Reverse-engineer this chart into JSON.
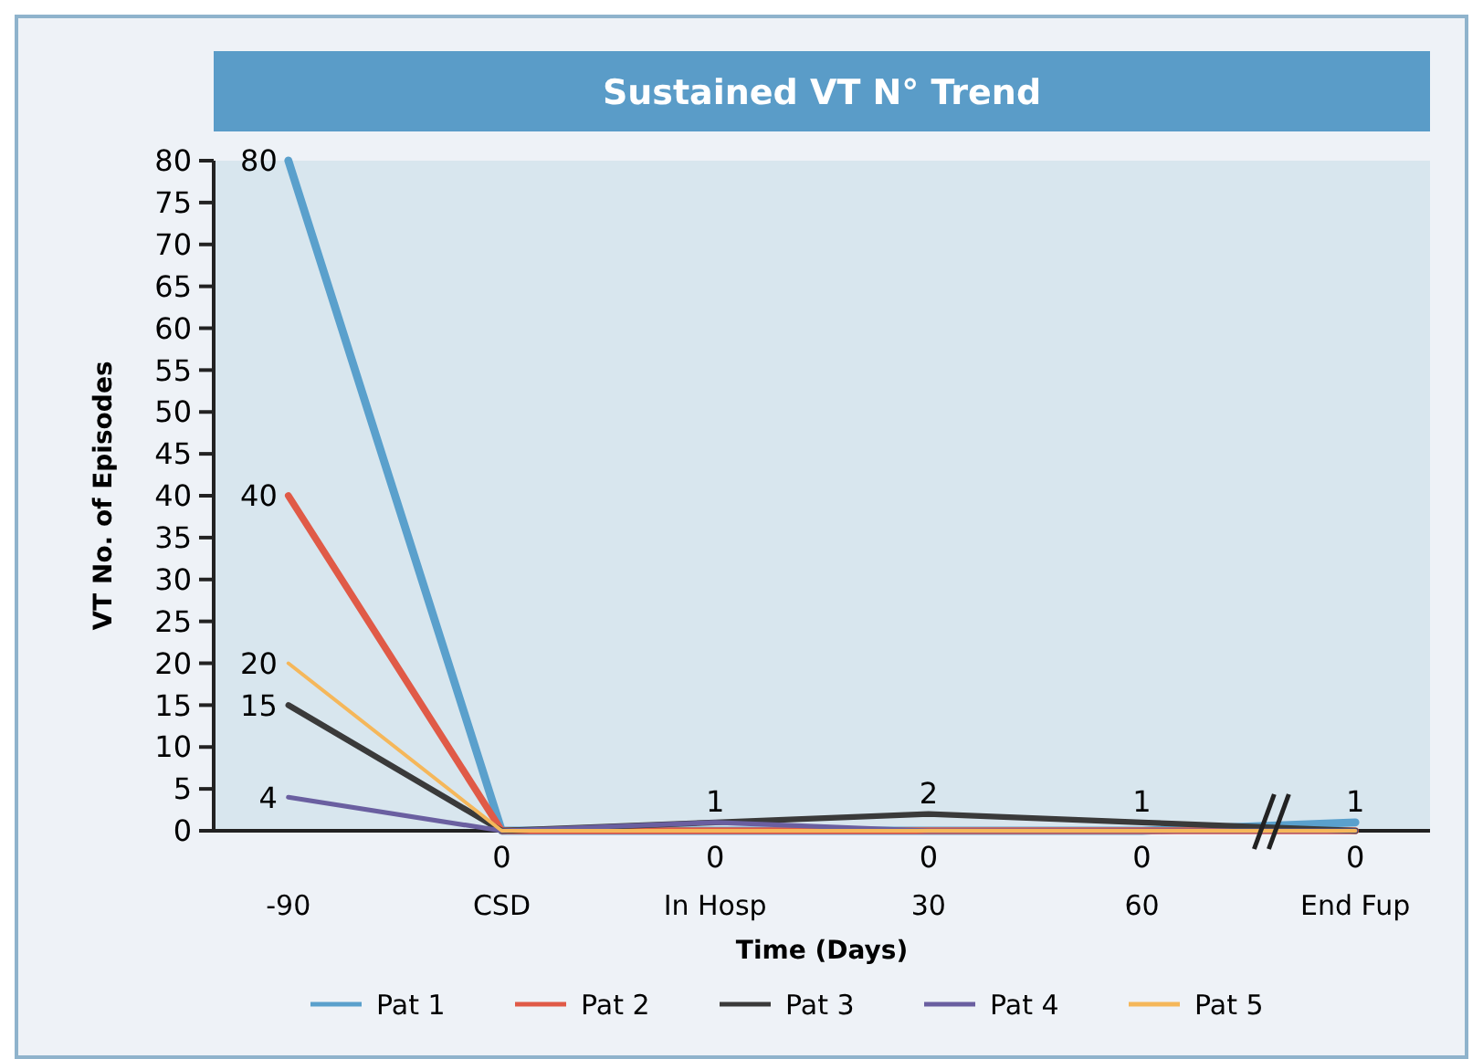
{
  "chart_data": {
    "type": "line",
    "title": "Sustained VT N° Trend",
    "xlabel": "Time (Days)",
    "ylabel": "VT No. of Episodes",
    "categories": [
      "-90",
      "CSD",
      "In Hosp",
      "30",
      "60",
      "End Fup"
    ],
    "series": [
      {
        "name": "Pat 1",
        "color": "#5aa0cc",
        "values": [
          80,
          0,
          0,
          0,
          0,
          1
        ]
      },
      {
        "name": "Pat 2",
        "color": "#e05a47",
        "values": [
          40,
          0,
          0,
          0,
          0,
          0
        ]
      },
      {
        "name": "Pat 3",
        "color": "#3a3a3a",
        "values": [
          15,
          0,
          1,
          2,
          1,
          0
        ]
      },
      {
        "name": "Pat 4",
        "color": "#6a5fa0",
        "values": [
          4,
          0,
          1,
          0,
          0,
          0
        ]
      },
      {
        "name": "Pat 5",
        "color": "#f5b75a",
        "values": [
          20,
          0,
          0,
          0,
          0,
          0
        ]
      }
    ],
    "ylim": [
      0,
      80
    ],
    "yticks": [
      0,
      5,
      10,
      15,
      20,
      25,
      30,
      35,
      40,
      45,
      50,
      55,
      60,
      65,
      70,
      75,
      80
    ],
    "grid": false,
    "legend": "bottom",
    "marker": "none",
    "line_style": "solid",
    "annotations": [
      {
        "text": "80",
        "x": "-90",
        "y": 80
      },
      {
        "text": "40",
        "x": "-90",
        "y": 40
      },
      {
        "text": "20",
        "x": "-90",
        "y": 20
      },
      {
        "text": "15",
        "x": "-90",
        "y": 15
      },
      {
        "text": "4",
        "x": "-90",
        "y": 4
      },
      {
        "text": "1",
        "x": "In Hosp",
        "y": 1
      },
      {
        "text": "2",
        "x": "30",
        "y": 2
      },
      {
        "text": "1",
        "x": "60",
        "y": 1
      },
      {
        "text": "1",
        "x": "End Fup",
        "y": 1
      },
      {
        "text": "0",
        "x": "CSD",
        "y": 0
      },
      {
        "text": "0",
        "x": "In Hosp",
        "y": 0
      },
      {
        "text": "0",
        "x": "30",
        "y": 0
      },
      {
        "text": "0",
        "x": "60",
        "y": 0
      },
      {
        "text": "0",
        "x": "End Fup",
        "y": 0
      }
    ]
  }
}
